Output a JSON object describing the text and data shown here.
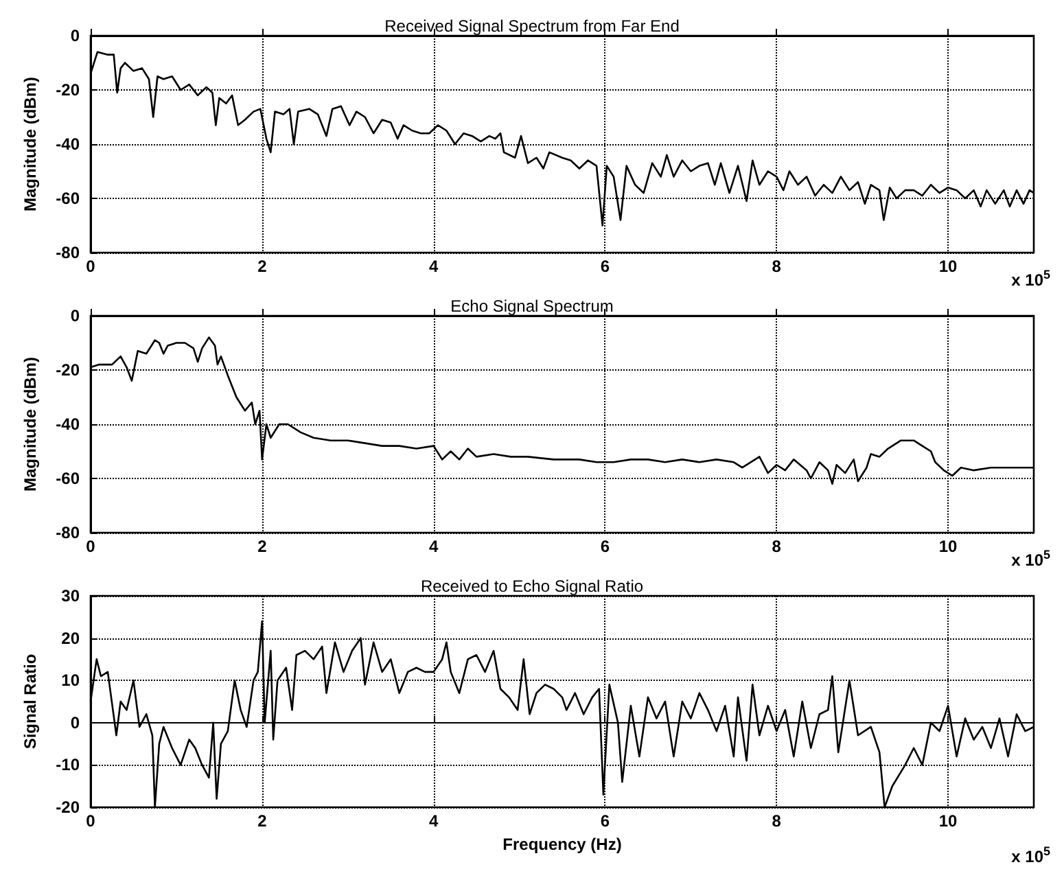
{
  "chart_data": [
    {
      "type": "line",
      "title": "Received Signal Spectrum from Far End",
      "ylabel": "Magnitude (dBm)",
      "xlim": [
        0,
        11
      ],
      "xticks": [
        0,
        2,
        4,
        6,
        8,
        10
      ],
      "ylim": [
        -80,
        0
      ],
      "yticks": [
        -80,
        -60,
        -40,
        -20,
        0
      ],
      "grid": true,
      "annotations": [
        "x 10$^{5}$"
      ],
      "series": [
        {
          "color": "#000000",
          "x": [
            0,
            0.08,
            0.2,
            0.27,
            0.31,
            0.35,
            0.4,
            0.5,
            0.6,
            0.68,
            0.73,
            0.78,
            0.85,
            0.95,
            1.05,
            1.15,
            1.25,
            1.35,
            1.42,
            1.46,
            1.5,
            1.58,
            1.65,
            1.72,
            1.8,
            1.9,
            1.98,
            2.05,
            2.1,
            2.15,
            2.25,
            2.32,
            2.37,
            2.42,
            2.55,
            2.65,
            2.75,
            2.82,
            2.92,
            3.02,
            3.1,
            3.2,
            3.3,
            3.4,
            3.5,
            3.58,
            3.65,
            3.75,
            3.85,
            3.95,
            4.05,
            4.15,
            4.25,
            4.35,
            4.45,
            4.55,
            4.65,
            4.72,
            4.78,
            4.82,
            4.95,
            5.02,
            5.1,
            5.2,
            5.28,
            5.35,
            5.5,
            5.6,
            5.7,
            5.8,
            5.9,
            5.97,
            6.02,
            6.1,
            6.18,
            6.25,
            6.35,
            6.45,
            6.55,
            6.65,
            6.72,
            6.8,
            6.9,
            7.0,
            7.1,
            7.2,
            7.28,
            7.35,
            7.45,
            7.55,
            7.65,
            7.72,
            7.8,
            7.9,
            8.0,
            8.08,
            8.15,
            8.25,
            8.35,
            8.45,
            8.55,
            8.65,
            8.75,
            8.85,
            8.95,
            9.03,
            9.1,
            9.2,
            9.25,
            9.32,
            9.4,
            9.5,
            9.6,
            9.7,
            9.8,
            9.9,
            10.0,
            10.1,
            10.2,
            10.3,
            10.38,
            10.45,
            10.55,
            10.65,
            10.72,
            10.8,
            10.88,
            10.95,
            11
          ],
          "values": [
            -14,
            -6,
            -7,
            -7,
            -21,
            -12,
            -10,
            -13,
            -12,
            -16,
            -30,
            -15,
            -16,
            -15,
            -20,
            -18,
            -22,
            -19,
            -21,
            -33,
            -23,
            -25,
            -22,
            -33,
            -31,
            -28,
            -27,
            -38,
            -43,
            -28,
            -29,
            -27,
            -40,
            -28,
            -27,
            -29,
            -37,
            -27,
            -26,
            -33,
            -28,
            -30,
            -36,
            -31,
            -32,
            -38,
            -33,
            -35,
            -36,
            -36,
            -33,
            -35,
            -40,
            -36,
            -37,
            -39,
            -37,
            -38,
            -36,
            -43,
            -45,
            -37,
            -47,
            -45,
            -49,
            -43,
            -45,
            -46,
            -49,
            -46,
            -48,
            -70,
            -48,
            -52,
            -68,
            -48,
            -55,
            -58,
            -47,
            -52,
            -44,
            -52,
            -46,
            -50,
            -48,
            -47,
            -55,
            -47,
            -58,
            -48,
            -61,
            -46,
            -55,
            -50,
            -52,
            -57,
            -50,
            -55,
            -52,
            -59,
            -55,
            -58,
            -52,
            -57,
            -54,
            -62,
            -55,
            -57,
            -68,
            -56,
            -60,
            -57,
            -57,
            -59,
            -55,
            -58,
            -56,
            -57,
            -60,
            -57,
            -63,
            -57,
            -62,
            -57,
            -63,
            -57,
            -62,
            -57,
            -58
          ]
        }
      ]
    },
    {
      "type": "line",
      "title": "Echo Signal Spectrum",
      "ylabel": "Magnitude (dBm)",
      "xlim": [
        0,
        11
      ],
      "xticks": [
        0,
        2,
        4,
        6,
        8,
        10
      ],
      "ylim": [
        -80,
        0
      ],
      "yticks": [
        -80,
        -60,
        -40,
        -20,
        0
      ],
      "grid": true,
      "annotations": [
        "x 10$^{5}$"
      ],
      "series": [
        {
          "color": "#000000",
          "x": [
            0,
            0.1,
            0.25,
            0.35,
            0.42,
            0.48,
            0.55,
            0.65,
            0.75,
            0.8,
            0.85,
            0.9,
            1.0,
            1.1,
            1.2,
            1.25,
            1.3,
            1.38,
            1.45,
            1.48,
            1.52,
            1.6,
            1.7,
            1.8,
            1.88,
            1.92,
            1.97,
            2.0,
            2.05,
            2.1,
            2.2,
            2.3,
            2.45,
            2.6,
            2.8,
            3.0,
            3.2,
            3.4,
            3.6,
            3.8,
            4.0,
            4.1,
            4.2,
            4.3,
            4.4,
            4.5,
            4.7,
            4.9,
            5.1,
            5.4,
            5.7,
            5.9,
            6.1,
            6.3,
            6.5,
            6.7,
            6.9,
            7.1,
            7.3,
            7.5,
            7.6,
            7.8,
            7.9,
            8.0,
            8.1,
            8.2,
            8.35,
            8.4,
            8.5,
            8.6,
            8.65,
            8.7,
            8.8,
            8.9,
            8.95,
            9.05,
            9.1,
            9.2,
            9.3,
            9.45,
            9.6,
            9.7,
            9.8,
            9.85,
            9.95,
            10.05,
            10.15,
            10.3,
            10.5,
            10.7,
            11
          ],
          "values": [
            -19,
            -18,
            -18,
            -15,
            -19,
            -24,
            -13,
            -14,
            -9,
            -10,
            -14,
            -11,
            -10,
            -10,
            -12,
            -17,
            -12,
            -8,
            -11,
            -18,
            -15,
            -22,
            -30,
            -35,
            -32,
            -40,
            -35,
            -53,
            -40,
            -45,
            -40,
            -40,
            -43,
            -45,
            -46,
            -46,
            -47,
            -48,
            -48,
            -49,
            -48,
            -53,
            -50,
            -53,
            -49,
            -52,
            -51,
            -52,
            -52,
            -53,
            -53,
            -54,
            -54,
            -53,
            -53,
            -54,
            -53,
            -54,
            -53,
            -54,
            -56,
            -52,
            -58,
            -55,
            -57,
            -53,
            -57,
            -60,
            -54,
            -57,
            -62,
            -55,
            -58,
            -53,
            -61,
            -56,
            -51,
            -52,
            -49,
            -46,
            -46,
            -48,
            -50,
            -54,
            -57,
            -59,
            -56,
            -57,
            -56,
            -56,
            -56
          ]
        }
      ]
    },
    {
      "type": "line",
      "title": "Received to Echo Signal Ratio",
      "ylabel": "Signal Ratio",
      "xlabel": "Frequency (Hz)",
      "xlim": [
        0,
        11
      ],
      "xticks": [
        0,
        2,
        4,
        6,
        8,
        10
      ],
      "ylim": [
        -20,
        30
      ],
      "yticks": [
        -20,
        -10,
        0,
        10,
        20,
        30
      ],
      "grid": true,
      "annotations": [
        "x 10$^{5}$"
      ],
      "series": [
        {
          "color": "#000000",
          "x": [
            0,
            0.07,
            0.12,
            0.2,
            0.3,
            0.35,
            0.42,
            0.5,
            0.57,
            0.65,
            0.72,
            0.75,
            0.8,
            0.85,
            0.95,
            1.05,
            1.15,
            1.22,
            1.3,
            1.38,
            1.43,
            1.47,
            1.52,
            1.6,
            1.68,
            1.75,
            1.82,
            1.9,
            1.95,
            2.0,
            2.03,
            2.1,
            2.13,
            2.18,
            2.28,
            2.35,
            2.4,
            2.5,
            2.6,
            2.7,
            2.75,
            2.85,
            2.95,
            3.05,
            3.15,
            3.2,
            3.3,
            3.4,
            3.5,
            3.6,
            3.7,
            3.8,
            3.9,
            4.0,
            4.1,
            4.15,
            4.2,
            4.3,
            4.4,
            4.5,
            4.6,
            4.7,
            4.78,
            4.88,
            4.98,
            5.05,
            5.12,
            5.2,
            5.3,
            5.4,
            5.5,
            5.55,
            5.65,
            5.75,
            5.85,
            5.93,
            5.98,
            6.05,
            6.15,
            6.2,
            6.3,
            6.4,
            6.5,
            6.6,
            6.7,
            6.8,
            6.9,
            7.0,
            7.1,
            7.2,
            7.3,
            7.4,
            7.5,
            7.55,
            7.65,
            7.72,
            7.8,
            7.9,
            8.0,
            8.1,
            8.2,
            8.3,
            8.4,
            8.5,
            8.6,
            8.65,
            8.72,
            8.85,
            8.95,
            9.1,
            9.2,
            9.26,
            9.35,
            9.5,
            9.6,
            9.7,
            9.8,
            9.9,
            10.0,
            10.1,
            10.2,
            10.3,
            10.4,
            10.5,
            10.6,
            10.7,
            10.8,
            10.9,
            11
          ],
          "values": [
            5,
            15,
            11,
            12,
            -3,
            5,
            3,
            10,
            -1,
            2,
            -3,
            -20,
            -5,
            -1,
            -6,
            -10,
            -4,
            -6,
            -10,
            -13,
            0,
            -18,
            -5,
            -2,
            10,
            3,
            -1,
            10,
            12,
            24,
            0,
            17,
            -4,
            10,
            13,
            3,
            16,
            17,
            15,
            18,
            7,
            19,
            12,
            17,
            20,
            9,
            19,
            12,
            15,
            7,
            12,
            13,
            12,
            12,
            15,
            19,
            12,
            7,
            15,
            16,
            12,
            17,
            8,
            6,
            3,
            15,
            2,
            7,
            9,
            8,
            6,
            3,
            7,
            2,
            6,
            8,
            -17,
            9,
            0,
            -14,
            4,
            -8,
            6,
            1,
            5,
            -8,
            5,
            1,
            7,
            3,
            -2,
            4,
            -8,
            6,
            -9,
            9,
            -3,
            4,
            -2,
            3,
            -8,
            5,
            -6,
            2,
            3,
            11,
            -7,
            10,
            -3,
            -1,
            -7,
            -20,
            -15,
            -10,
            -6,
            -10,
            0,
            -2,
            4,
            -8,
            1,
            -4,
            -1,
            -6,
            1,
            -8,
            2,
            -2,
            -1
          ]
        }
      ]
    }
  ]
}
